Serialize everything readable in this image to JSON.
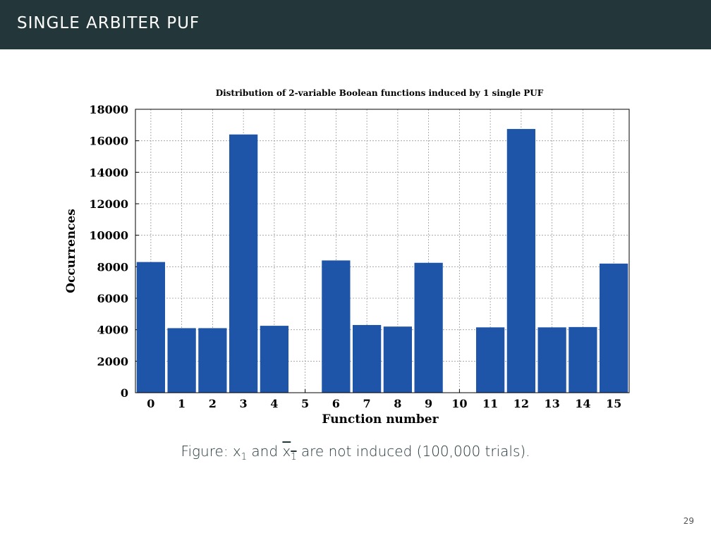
{
  "header": {
    "title": "SINGLE ARBITER PUF"
  },
  "chart_data": {
    "type": "bar",
    "title": "Distribution of 2-variable Boolean functions induced by 1 single PUF",
    "xlabel": "Function number",
    "ylabel": "Occurrences",
    "categories": [
      "0",
      "1",
      "2",
      "3",
      "4",
      "5",
      "6",
      "7",
      "8",
      "9",
      "10",
      "11",
      "12",
      "13",
      "14",
      "15"
    ],
    "values": [
      8300,
      4100,
      4100,
      16400,
      4250,
      0,
      8400,
      4300,
      4200,
      8250,
      0,
      4150,
      16750,
      4150,
      4170,
      8200
    ],
    "ylim": [
      0,
      18000
    ],
    "yticks": [
      "0",
      "2000",
      "4000",
      "6000",
      "8000",
      "10000",
      "12000",
      "14000",
      "16000",
      "18000"
    ],
    "grid": true,
    "bar_color": "#1f55a8"
  },
  "caption": {
    "label": "Figure:",
    "var1": "x",
    "sub1": "1",
    "mid": "and",
    "var2": "x",
    "sub2": "1",
    "rest": "are not induced (100,000 trials)."
  },
  "page_number": "29"
}
